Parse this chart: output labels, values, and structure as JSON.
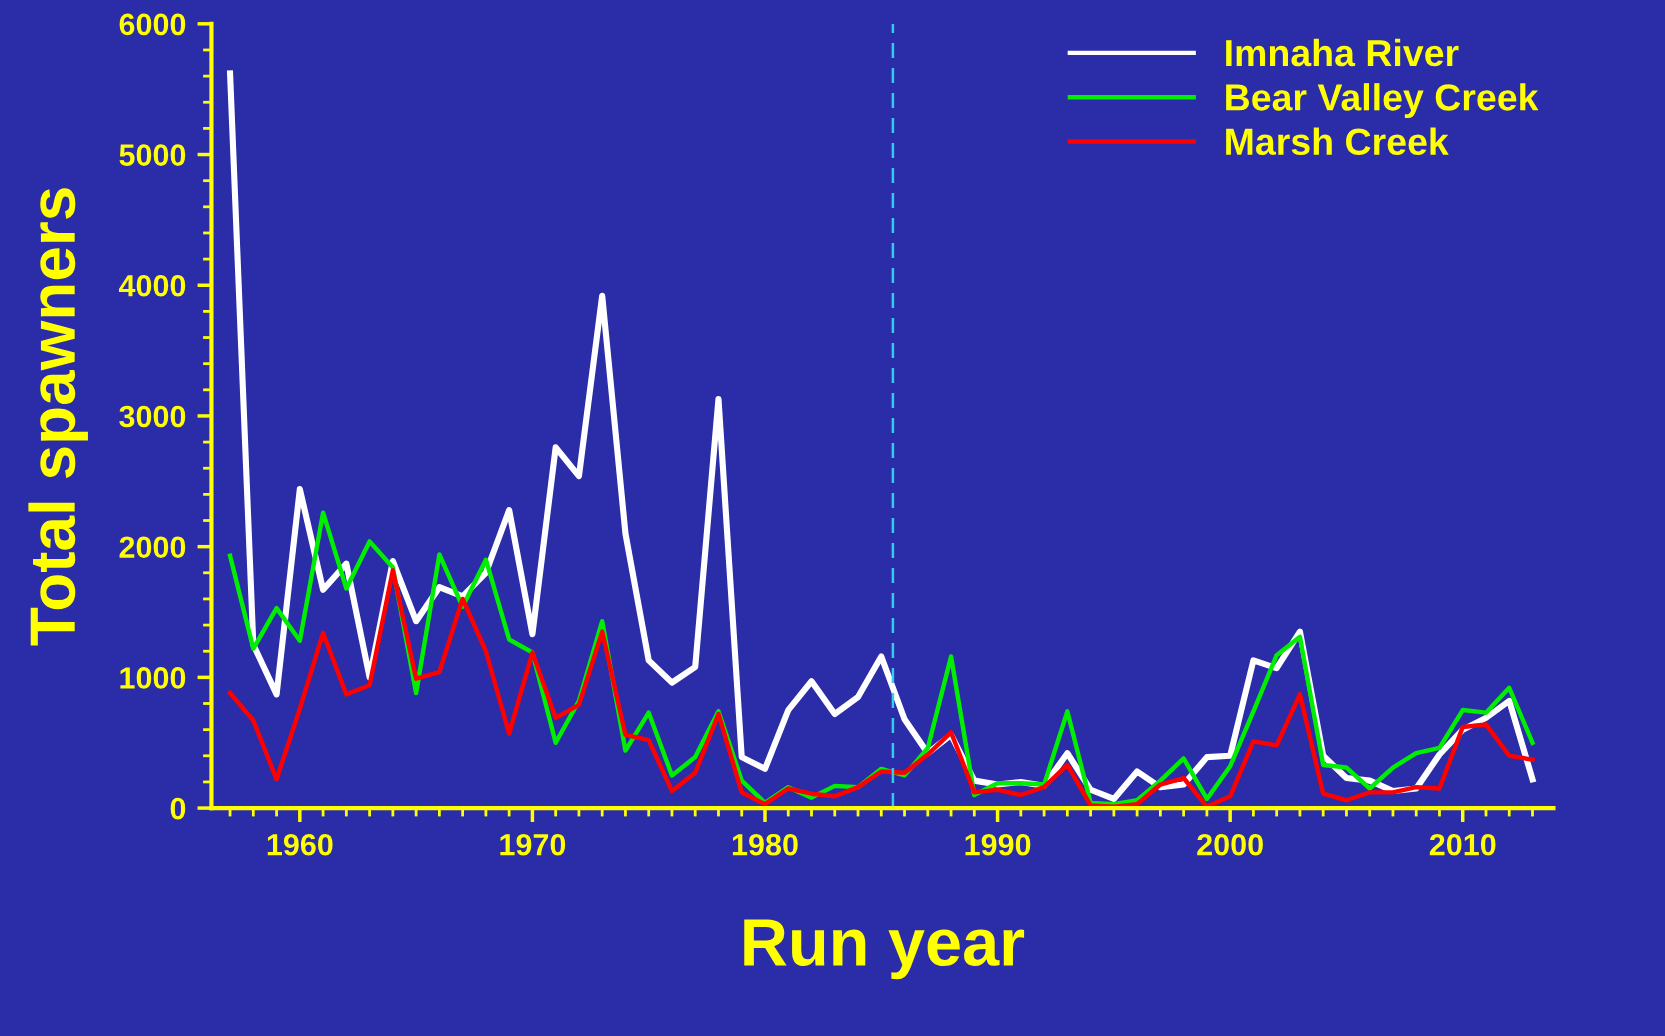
{
  "chart_data": {
    "type": "line",
    "xlabel": "Run year",
    "ylabel": "Total spawners",
    "x": [
      1957,
      1958,
      1959,
      1960,
      1961,
      1962,
      1963,
      1964,
      1965,
      1966,
      1967,
      1968,
      1969,
      1970,
      1971,
      1972,
      1973,
      1974,
      1975,
      1976,
      1977,
      1978,
      1979,
      1980,
      1981,
      1982,
      1983,
      1984,
      1985,
      1986,
      1987,
      1988,
      1989,
      1990,
      1991,
      1992,
      1993,
      1994,
      1995,
      1996,
      1997,
      1998,
      1999,
      2000,
      2001,
      2002,
      2003,
      2004,
      2005,
      2006,
      2007,
      2008,
      2009,
      2010,
      2011,
      2012,
      2013
    ],
    "series": [
      {
        "name": "Imnaha River",
        "color": "#ffffff",
        "values": [
          5620,
          1250,
          870,
          2440,
          1670,
          1870,
          1000,
          1890,
          1430,
          1690,
          1620,
          1800,
          2280,
          1330,
          2760,
          2540,
          3920,
          2100,
          1130,
          960,
          1080,
          3130,
          390,
          300,
          750,
          970,
          720,
          850,
          1160,
          680,
          420,
          560,
          210,
          180,
          200,
          170,
          420,
          140,
          70,
          280,
          160,
          180,
          390,
          400,
          1130,
          1070,
          1350,
          400,
          230,
          210,
          130,
          150,
          410,
          600,
          690,
          820,
          220
        ]
      },
      {
        "name": "Bear Valley Creek",
        "color": "#00ee00",
        "values": [
          1930,
          1220,
          1530,
          1280,
          2260,
          1680,
          2040,
          1840,
          880,
          1940,
          1540,
          1900,
          1290,
          1190,
          500,
          820,
          1430,
          440,
          730,
          250,
          390,
          740,
          210,
          40,
          160,
          80,
          170,
          160,
          300,
          250,
          460,
          1160,
          100,
          190,
          190,
          180,
          740,
          40,
          30,
          60,
          210,
          380,
          70,
          320,
          740,
          1170,
          1310,
          330,
          310,
          150,
          310,
          420,
          460,
          750,
          730,
          920,
          500
        ]
      },
      {
        "name": "Marsh Creek",
        "color": "#ff0000",
        "values": [
          880,
          670,
          220,
          760,
          1340,
          870,
          940,
          1820,
          990,
          1040,
          1600,
          1200,
          570,
          1190,
          690,
          790,
          1350,
          560,
          520,
          130,
          270,
          720,
          120,
          30,
          150,
          110,
          90,
          160,
          280,
          270,
          410,
          580,
          120,
          140,
          100,
          160,
          330,
          20,
          10,
          30,
          180,
          230,
          10,
          90,
          510,
          480,
          870,
          110,
          60,
          120,
          120,
          160,
          150,
          620,
          640,
          400,
          370
        ]
      }
    ],
    "xlim": [
      1956.2,
      2013.9
    ],
    "xticks": [
      1960,
      1970,
      1980,
      1990,
      2000,
      2010
    ],
    "ylim": [
      0,
      6000
    ],
    "yticks": [
      0,
      1000,
      2000,
      3000,
      4000,
      5000,
      6000
    ],
    "ref_lines": [
      {
        "axis": "x",
        "value": 1985.5,
        "color": "#33ccee",
        "line_style": "dashed"
      }
    ],
    "legend": "top right",
    "grid": false,
    "marker": "none",
    "line_style": "solid"
  }
}
